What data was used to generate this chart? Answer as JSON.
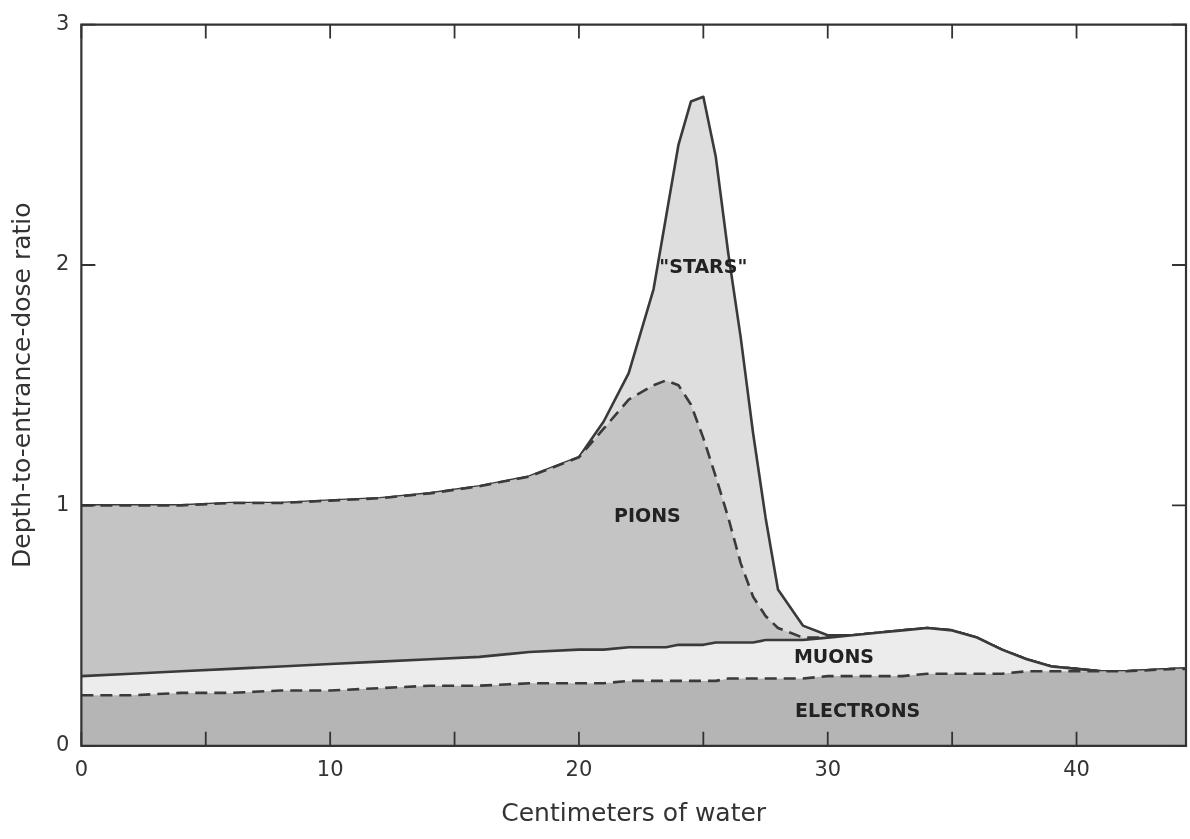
{
  "chart_data": {
    "type": "area",
    "stacked": true,
    "xlabel": "Centimeters of water",
    "ylabel": "Depth-to-entrance-dose ratio",
    "x": [
      0,
      2,
      4,
      6,
      8,
      10,
      12,
      14,
      16,
      18,
      20,
      21,
      22,
      23,
      23.5,
      24,
      24.5,
      25,
      25.5,
      26,
      26.5,
      27,
      27.5,
      28,
      29,
      30,
      31,
      32,
      33,
      34,
      35,
      36,
      37,
      38,
      39,
      40,
      41,
      42,
      44,
      44.4
    ],
    "series": [
      {
        "name": "ELECTRONS",
        "color": "#b5b5b5",
        "line_style": "dashed",
        "values": [
          0.21,
          0.21,
          0.22,
          0.22,
          0.23,
          0.23,
          0.24,
          0.25,
          0.25,
          0.26,
          0.26,
          0.26,
          0.27,
          0.27,
          0.27,
          0.27,
          0.27,
          0.27,
          0.27,
          0.28,
          0.28,
          0.28,
          0.28,
          0.28,
          0.28,
          0.29,
          0.29,
          0.29,
          0.29,
          0.3,
          0.3,
          0.3,
          0.3,
          0.31,
          0.31,
          0.31,
          0.31,
          0.31,
          0.32,
          0.32
        ]
      },
      {
        "name": "MUONS",
        "color": "#ececec",
        "line_style": "solid",
        "values": [
          0.08,
          0.09,
          0.09,
          0.1,
          0.1,
          0.11,
          0.11,
          0.11,
          0.12,
          0.13,
          0.14,
          0.14,
          0.14,
          0.14,
          0.14,
          0.15,
          0.15,
          0.15,
          0.16,
          0.15,
          0.15,
          0.15,
          0.16,
          0.16,
          0.16,
          0.16,
          0.17,
          0.18,
          0.19,
          0.19,
          0.18,
          0.15,
          0.1,
          0.05,
          0.02,
          0.01,
          0,
          0,
          0,
          0
        ]
      },
      {
        "name": "PIONS",
        "color": "#c4c4c4",
        "line_style": "dashed",
        "values": [
          0.71,
          0.7,
          0.69,
          0.69,
          0.68,
          0.68,
          0.68,
          0.69,
          0.71,
          0.73,
          0.8,
          0.92,
          1.03,
          1.09,
          1.11,
          1.08,
          1.0,
          0.86,
          0.69,
          0.52,
          0.33,
          0.19,
          0.1,
          0.05,
          0.01,
          0,
          0,
          0,
          0,
          0,
          0,
          0,
          0,
          0,
          0,
          0,
          0,
          0,
          0,
          0
        ]
      },
      {
        "name": "\"STARS\"",
        "color": "#dedede",
        "line_style": "solid",
        "values": [
          0,
          0,
          0,
          0,
          0,
          0,
          0,
          0,
          0,
          0,
          0,
          0.03,
          0.11,
          0.4,
          0.68,
          1.0,
          1.26,
          1.42,
          1.33,
          1.1,
          0.94,
          0.68,
          0.41,
          0.16,
          0.05,
          0.01,
          0,
          0,
          0,
          0,
          0,
          0,
          0,
          0,
          0,
          0,
          0,
          0,
          0,
          0
        ]
      }
    ],
    "xlim": [
      0,
      44.4
    ],
    "xticks": [
      0,
      {
        "value": 5,
        "label": null
      },
      10,
      {
        "value": 15,
        "label": null
      },
      20,
      {
        "value": 25,
        "label": null
      },
      30,
      {
        "value": 35,
        "label": null
      },
      40
    ],
    "ylim": [
      0,
      3
    ],
    "yticks": [
      0,
      1,
      2,
      3
    ],
    "grid": false,
    "legend": false
  }
}
